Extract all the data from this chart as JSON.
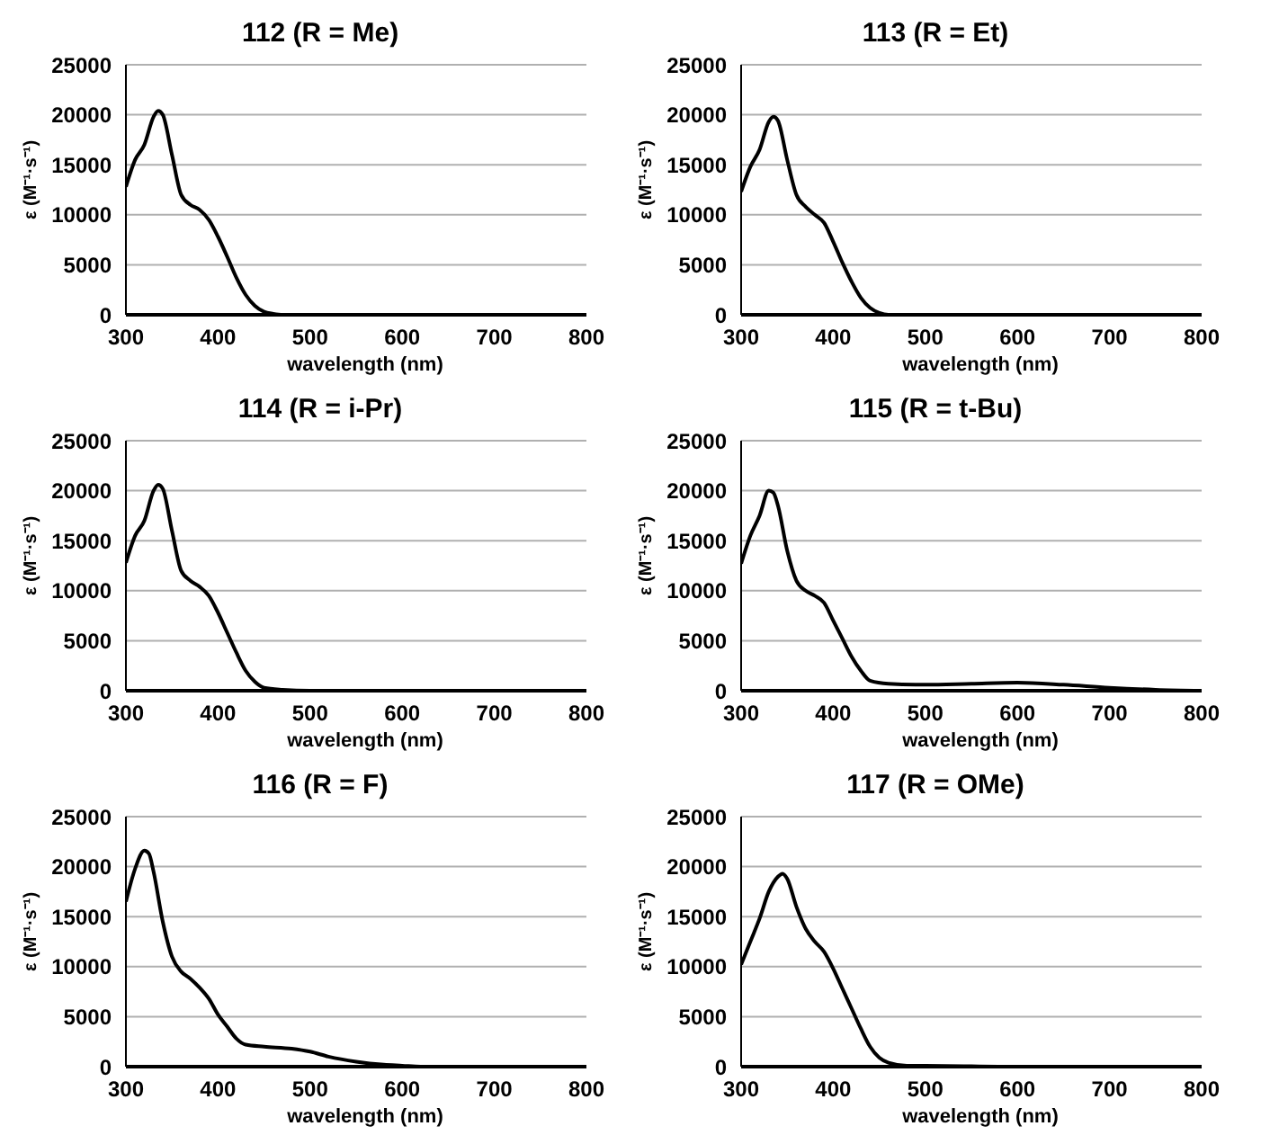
{
  "chart_data": [
    {
      "type": "line",
      "title": "112 (R = Me)",
      "xlabel": "wavelength (nm)",
      "ylabel": "ε (M⁻¹·s⁻¹)",
      "xlim": [
        300,
        800
      ],
      "xticks": [
        300,
        400,
        500,
        600,
        700,
        800
      ],
      "ylim": [
        0,
        25000
      ],
      "yticks": [
        0,
        5000,
        10000,
        15000,
        20000,
        25000
      ],
      "grid": "y",
      "x": [
        300,
        310,
        320,
        330,
        335,
        340,
        350,
        360,
        370,
        380,
        390,
        400,
        410,
        420,
        430,
        440,
        450,
        460,
        470,
        500,
        800
      ],
      "series": [
        {
          "color": "#000000",
          "values": [
            12800,
            15500,
            17000,
            19800,
            20400,
            20000,
            16000,
            12000,
            11000,
            10500,
            9500,
            7800,
            5800,
            3700,
            2000,
            900,
            300,
            100,
            0,
            0,
            0
          ]
        }
      ]
    },
    {
      "type": "line",
      "title": "113 (R = Et)",
      "xlabel": "wavelength (nm)",
      "ylabel": "ε (M⁻¹·s⁻¹)",
      "xlim": [
        300,
        800
      ],
      "xticks": [
        300,
        400,
        500,
        600,
        700,
        800
      ],
      "ylim": [
        0,
        25000
      ],
      "yticks": [
        0,
        5000,
        10000,
        15000,
        20000,
        25000
      ],
      "grid": "y",
      "x": [
        300,
        310,
        320,
        330,
        335,
        340,
        350,
        360,
        370,
        380,
        390,
        400,
        410,
        420,
        430,
        440,
        450,
        460,
        800
      ],
      "series": [
        {
          "color": "#000000",
          "values": [
            12300,
            14800,
            16500,
            19300,
            19800,
            19400,
            15500,
            12000,
            10800,
            10000,
            9200,
            7300,
            5200,
            3300,
            1700,
            700,
            200,
            0,
            0
          ]
        }
      ]
    },
    {
      "type": "line",
      "title": "114 (R = i-Pr)",
      "xlabel": "wavelength (nm)",
      "ylabel": "ε (M⁻¹·s⁻¹)",
      "xlim": [
        300,
        800
      ],
      "xticks": [
        300,
        400,
        500,
        600,
        700,
        800
      ],
      "ylim": [
        0,
        25000
      ],
      "yticks": [
        0,
        5000,
        10000,
        15000,
        20000,
        25000
      ],
      "grid": "y",
      "x": [
        300,
        310,
        320,
        330,
        335,
        340,
        350,
        360,
        370,
        380,
        390,
        400,
        410,
        420,
        430,
        440,
        450,
        470,
        500,
        600,
        800
      ],
      "series": [
        {
          "color": "#000000",
          "values": [
            12800,
            15500,
            17000,
            20000,
            20600,
            20200,
            16000,
            12000,
            11000,
            10400,
            9500,
            7800,
            5800,
            3800,
            2000,
            900,
            300,
            100,
            0,
            0,
            0
          ]
        }
      ]
    },
    {
      "type": "line",
      "title": "115 (R = t-Bu)",
      "xlabel": "wavelength (nm)",
      "ylabel": "ε (M⁻¹·s⁻¹)",
      "xlim": [
        300,
        800
      ],
      "xticks": [
        300,
        400,
        500,
        600,
        700,
        800
      ],
      "ylim": [
        0,
        25000
      ],
      "yticks": [
        0,
        5000,
        10000,
        15000,
        20000,
        25000
      ],
      "grid": "y",
      "x": [
        300,
        310,
        320,
        330,
        335,
        340,
        350,
        360,
        370,
        380,
        390,
        400,
        410,
        420,
        430,
        440,
        460,
        500,
        550,
        600,
        650,
        700,
        750,
        800
      ],
      "series": [
        {
          "color": "#000000",
          "values": [
            12700,
            15500,
            17500,
            20000,
            19800,
            18500,
            14000,
            11000,
            10000,
            9500,
            8800,
            7000,
            5200,
            3400,
            2000,
            1000,
            700,
            600,
            700,
            800,
            600,
            300,
            100,
            0
          ]
        }
      ]
    },
    {
      "type": "line",
      "title": "116 (R = F)",
      "xlabel": "wavelength (nm)",
      "ylabel": "ε (M⁻¹·s⁻¹)",
      "xlim": [
        300,
        800
      ],
      "xticks": [
        300,
        400,
        500,
        600,
        700,
        800
      ],
      "ylim": [
        0,
        25000
      ],
      "yticks": [
        0,
        5000,
        10000,
        15000,
        20000,
        25000
      ],
      "grid": "y",
      "x": [
        300,
        310,
        320,
        325,
        330,
        340,
        350,
        360,
        370,
        380,
        390,
        400,
        410,
        420,
        430,
        450,
        480,
        500,
        520,
        550,
        580,
        600,
        620,
        800
      ],
      "series": [
        {
          "color": "#000000",
          "values": [
            16500,
            19800,
            21600,
            21300,
            19500,
            14500,
            11000,
            9500,
            8800,
            7900,
            6800,
            5200,
            4000,
            2800,
            2200,
            2000,
            1800,
            1500,
            1000,
            500,
            200,
            100,
            0,
            0
          ]
        }
      ]
    },
    {
      "type": "line",
      "title": "117 (R = OMe)",
      "xlabel": "wavelength (nm)",
      "ylabel": "ε (M⁻¹·s⁻¹)",
      "xlim": [
        300,
        800
      ],
      "xticks": [
        300,
        400,
        500,
        600,
        700,
        800
      ],
      "ylim": [
        0,
        25000
      ],
      "yticks": [
        0,
        5000,
        10000,
        15000,
        20000,
        25000
      ],
      "grid": "y",
      "x": [
        300,
        310,
        320,
        330,
        340,
        345,
        350,
        360,
        370,
        380,
        390,
        400,
        410,
        420,
        430,
        440,
        450,
        460,
        480,
        500,
        600,
        650,
        800
      ],
      "series": [
        {
          "color": "#000000",
          "values": [
            10200,
            12500,
            14800,
            17500,
            19000,
            19300,
            18800,
            16000,
            13800,
            12500,
            11500,
            9800,
            7800,
            5800,
            3800,
            2000,
            900,
            400,
            100,
            100,
            0,
            0,
            0
          ]
        }
      ]
    }
  ]
}
